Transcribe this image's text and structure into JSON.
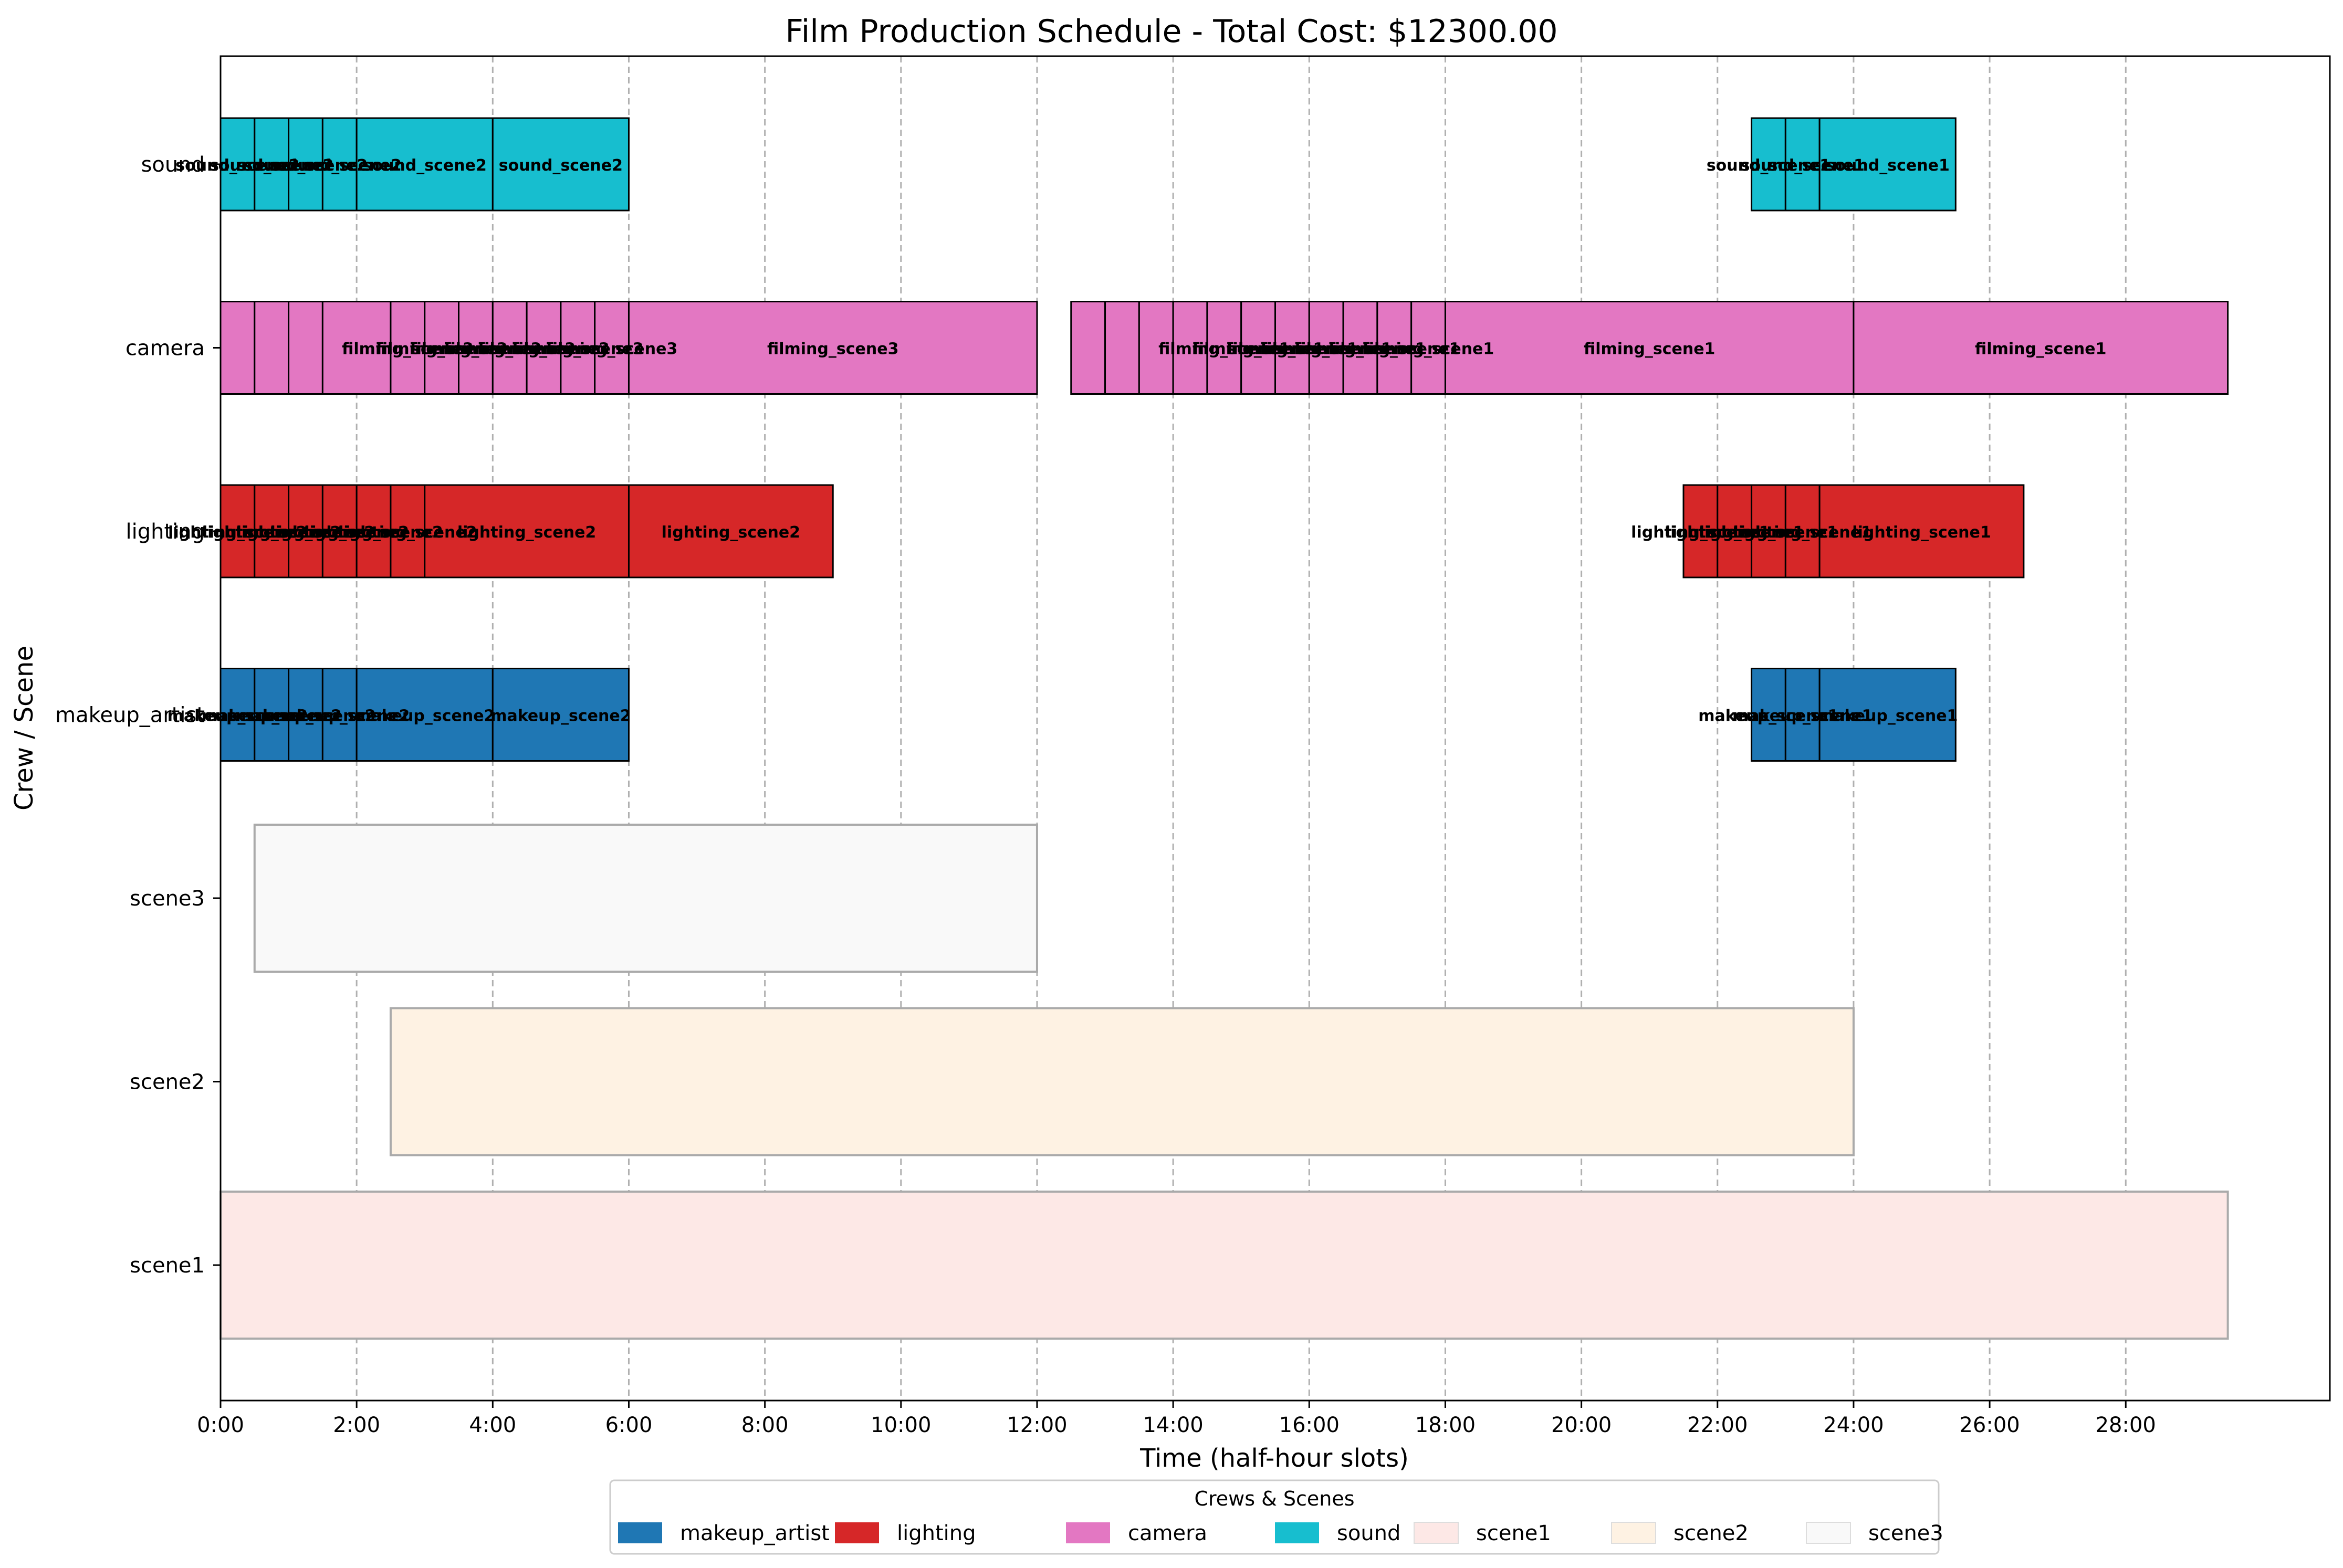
{
  "chart_data": {
    "type": "bar",
    "orientation": "horizontal-gantt",
    "title": "Film Production Schedule - Total Cost: $12300.00",
    "xlabel": "Time (half-hour slots)",
    "ylabel": "Crew / Scene",
    "xlim": [
      0,
      31
    ],
    "x_ticks": [
      0,
      2,
      4,
      6,
      8,
      10,
      12,
      14,
      16,
      18,
      20,
      22,
      24,
      26,
      28
    ],
    "x_tick_labels": [
      "0:00",
      "2:00",
      "4:00",
      "6:00",
      "8:00",
      "10:00",
      "12:00",
      "14:00",
      "16:00",
      "18:00",
      "20:00",
      "22:00",
      "24:00",
      "26:00",
      "28:00"
    ],
    "grid": "vertical dashed at x ticks",
    "categories": [
      "sound",
      "camera",
      "lighting",
      "makeup_artist",
      "scene3",
      "scene2",
      "scene1"
    ],
    "legend": {
      "title": "Crews & Scenes",
      "placement": "bottom-center",
      "entries": [
        {
          "name": "makeup_artist",
          "color": "#1f77b4"
        },
        {
          "name": "lighting",
          "color": "#d62728"
        },
        {
          "name": "camera",
          "color": "#e377c2"
        },
        {
          "name": "sound",
          "color": "#17becf"
        },
        {
          "name": "scene1",
          "color": "#fde8e6"
        },
        {
          "name": "scene2",
          "color": "#fef2e3"
        },
        {
          "name": "scene3",
          "color": "#f9f9f9"
        }
      ]
    },
    "crew_rows": [
      {
        "row": "sound",
        "color": "#17becf",
        "segments": [
          {
            "start": 0,
            "end": 0.5,
            "label": "sound_scene2"
          },
          {
            "start": 0.5,
            "end": 1,
            "label": "sound_scene2"
          },
          {
            "start": 1,
            "end": 1.5,
            "label": "sound_scene2"
          },
          {
            "start": 1.5,
            "end": 2,
            "label": "sound_scene2"
          },
          {
            "start": 2,
            "end": 4,
            "label": "sound_scene2"
          },
          {
            "start": 4,
            "end": 6,
            "label": "sound_scene2"
          },
          {
            "start": 22.5,
            "end": 23,
            "label": "sound_scene1"
          },
          {
            "start": 23,
            "end": 23.5,
            "label": "sound_scene1"
          },
          {
            "start": 23.5,
            "end": 25.5,
            "label": "sound_scene1"
          }
        ]
      },
      {
        "row": "camera",
        "color": "#e377c2",
        "segments": [
          {
            "start": 0,
            "end": 0.5,
            "label": ""
          },
          {
            "start": 0.5,
            "end": 1,
            "label": ""
          },
          {
            "start": 1,
            "end": 1.5,
            "label": ""
          },
          {
            "start": 1.5,
            "end": 2.5,
            "label": ""
          },
          {
            "start": 2.5,
            "end": 3,
            "label": "filming_scene3"
          },
          {
            "start": 3,
            "end": 3.5,
            "label": "filming_scene3"
          },
          {
            "start": 3.5,
            "end": 4,
            "label": "filming_scene3"
          },
          {
            "start": 4,
            "end": 4.5,
            "label": "filming_scene3"
          },
          {
            "start": 4.5,
            "end": 5,
            "label": "filming_scene3"
          },
          {
            "start": 5,
            "end": 5.5,
            "label": "filming_scene3"
          },
          {
            "start": 5.5,
            "end": 6,
            "label": "filming_scene3"
          },
          {
            "start": 6,
            "end": 12,
            "label": "filming_scene3"
          },
          {
            "start": 12.5,
            "end": 13,
            "label": ""
          },
          {
            "start": 13,
            "end": 13.5,
            "label": ""
          },
          {
            "start": 13.5,
            "end": 14,
            "label": ""
          },
          {
            "start": 14,
            "end": 14.5,
            "label": ""
          },
          {
            "start": 14.5,
            "end": 15,
            "label": "filming_scene1"
          },
          {
            "start": 15,
            "end": 15.5,
            "label": "filming_scene1"
          },
          {
            "start": 15.5,
            "end": 16,
            "label": "filming_scene1"
          },
          {
            "start": 16,
            "end": 16.5,
            "label": "filming_scene1"
          },
          {
            "start": 16.5,
            "end": 17,
            "label": "filming_scene1"
          },
          {
            "start": 17,
            "end": 17.5,
            "label": "filming_scene1"
          },
          {
            "start": 17.5,
            "end": 18,
            "label": "filming_scene1"
          },
          {
            "start": 18,
            "end": 24,
            "label": "filming_scene1"
          },
          {
            "start": 24,
            "end": 29.5,
            "label": "filming_scene1"
          }
        ]
      },
      {
        "row": "lighting",
        "color": "#d62728",
        "segments": [
          {
            "start": 0,
            "end": 0.5,
            "label": "lighting_scene2"
          },
          {
            "start": 0.5,
            "end": 1,
            "label": "lighting_scene2"
          },
          {
            "start": 1,
            "end": 1.5,
            "label": "lighting_scene2"
          },
          {
            "start": 1.5,
            "end": 2,
            "label": "lighting_scene2"
          },
          {
            "start": 2,
            "end": 2.5,
            "label": "lighting_scene2"
          },
          {
            "start": 2.5,
            "end": 3,
            "label": "lighting_scene2"
          },
          {
            "start": 3,
            "end": 6,
            "label": "lighting_scene2"
          },
          {
            "start": 6,
            "end": 9,
            "label": "lighting_scene2"
          },
          {
            "start": 21.5,
            "end": 22,
            "label": "lighting_scene1"
          },
          {
            "start": 22,
            "end": 22.5,
            "label": "lighting_scene1"
          },
          {
            "start": 22.5,
            "end": 23,
            "label": "lighting_scene1"
          },
          {
            "start": 23,
            "end": 23.5,
            "label": "lighting_scene1"
          },
          {
            "start": 23.5,
            "end": 26.5,
            "label": "lighting_scene1"
          }
        ]
      },
      {
        "row": "makeup_artist",
        "color": "#1f77b4",
        "segments": [
          {
            "start": 0,
            "end": 0.5,
            "label": "makeup_scene2"
          },
          {
            "start": 0.5,
            "end": 1,
            "label": "makeup_scene2"
          },
          {
            "start": 1,
            "end": 1.5,
            "label": "makeup_scene2"
          },
          {
            "start": 1.5,
            "end": 2,
            "label": "makeup_scene2"
          },
          {
            "start": 2,
            "end": 4,
            "label": "makeup_scene2"
          },
          {
            "start": 4,
            "end": 6,
            "label": "makeup_scene2"
          },
          {
            "start": 22.5,
            "end": 23,
            "label": "makeup_scene1"
          },
          {
            "start": 23,
            "end": 23.5,
            "label": "makeup_scene1"
          },
          {
            "start": 23.5,
            "end": 25.5,
            "label": "makeup_scene1"
          }
        ]
      }
    ],
    "scene_rows": [
      {
        "row": "scene3",
        "start": 0.5,
        "end": 12,
        "color": "#f9f9f9"
      },
      {
        "row": "scene2",
        "start": 2.5,
        "end": 24,
        "color": "#fef2e3"
      },
      {
        "row": "scene1",
        "start": 0,
        "end": 29.5,
        "color": "#fde8e6"
      }
    ]
  }
}
